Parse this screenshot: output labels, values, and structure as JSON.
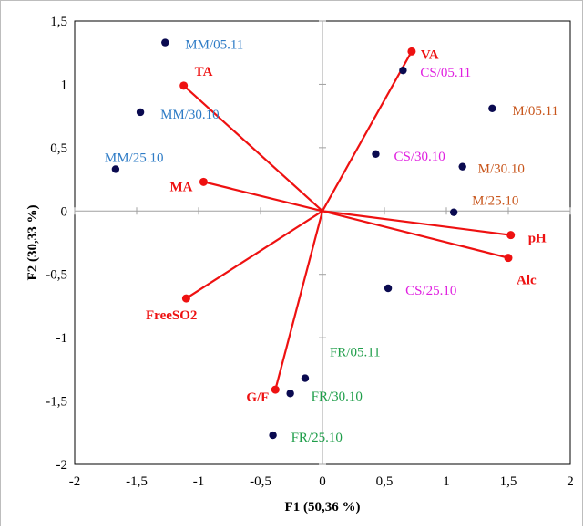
{
  "chart_data": {
    "type": "scatter",
    "title": "",
    "xlabel": "F1 (50,36 %)",
    "ylabel": "F2 (30,33 %)",
    "xlim": [
      -2,
      2
    ],
    "ylim": [
      -2,
      1.5
    ],
    "x_ticks": [
      "-2",
      "-1,5",
      "-1",
      "-0,5",
      "0",
      "0,5",
      "1",
      "1,5",
      "2"
    ],
    "y_ticks": [
      "-2",
      "-1,5",
      "-1",
      "-0,5",
      "0",
      "0,5",
      "1",
      "1,5"
    ],
    "grid": false,
    "colors": {
      "point": "#0a0a50",
      "vector": "#ee1111",
      "vector_label": "#ee1111",
      "group_MM": "#2f7cc6",
      "group_CS": "#e020e0",
      "group_M": "#c8561c",
      "group_FR": "#1f9e4a",
      "axis": "#000000",
      "center_axis": "#a0a0a0"
    },
    "observations": [
      {
        "label": "MM/05.11",
        "x": -1.27,
        "y": 1.33,
        "group": "MM"
      },
      {
        "label": "MM/30.10",
        "x": -1.47,
        "y": 0.78,
        "group": "MM"
      },
      {
        "label": "MM/25.10",
        "x": -1.67,
        "y": 0.33,
        "group": "MM"
      },
      {
        "label": "CS/05.11",
        "x": 0.65,
        "y": 1.11,
        "group": "CS"
      },
      {
        "label": "CS/30.10",
        "x": 0.43,
        "y": 0.45,
        "group": "CS"
      },
      {
        "label": "CS/25.10",
        "x": 0.53,
        "y": -0.61,
        "group": "CS"
      },
      {
        "label": "M/05.11",
        "x": 1.37,
        "y": 0.81,
        "group": "M"
      },
      {
        "label": "M/30.10",
        "x": 1.13,
        "y": 0.35,
        "group": "M"
      },
      {
        "label": "M/25.10",
        "x": 1.06,
        "y": -0.01,
        "group": "M"
      },
      {
        "label": "FR/05.11",
        "x": -0.14,
        "y": -1.32,
        "group": "FR"
      },
      {
        "label": "FR/30.10",
        "x": -0.26,
        "y": -1.44,
        "group": "FR"
      },
      {
        "label": "FR/25.10",
        "x": -0.4,
        "y": -1.77,
        "group": "FR"
      }
    ],
    "variables": [
      {
        "label": "VA",
        "x": 0.72,
        "y": 1.26
      },
      {
        "label": "TA",
        "x": -1.12,
        "y": 0.99
      },
      {
        "label": "MA",
        "x": -0.96,
        "y": 0.23
      },
      {
        "label": "pH",
        "x": 1.52,
        "y": -0.19
      },
      {
        "label": "Alc",
        "x": 1.5,
        "y": -0.37
      },
      {
        "label": "FreeSO2",
        "x": -1.1,
        "y": -0.69
      },
      {
        "label": "G/F",
        "x": -0.38,
        "y": -1.41
      }
    ]
  }
}
